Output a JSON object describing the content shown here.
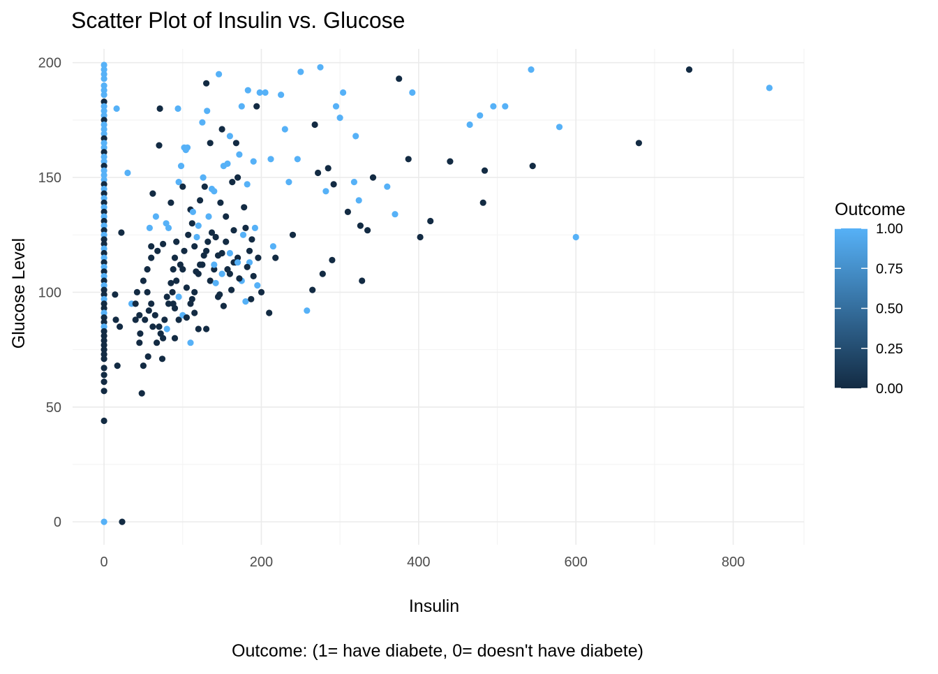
{
  "chart_data": {
    "type": "scatter",
    "title": "Scatter Plot of Insulin  vs. Glucose",
    "xlabel": "Insulin",
    "ylabel": "Glucose Level",
    "caption": "Outcome: (1= have diabete, 0= doesn't have diabete)",
    "xlim": [
      -40,
      890
    ],
    "ylim": [
      -10,
      206
    ],
    "x_ticks": [
      0,
      200,
      400,
      600,
      800
    ],
    "y_ticks": [
      0,
      50,
      100,
      150,
      200
    ],
    "x_tick_labels": [
      "0",
      "200",
      "400",
      "600",
      "800"
    ],
    "y_tick_labels": [
      "0",
      "50",
      "100",
      "150",
      "200"
    ],
    "grid": true,
    "legend": {
      "title": "Outcome",
      "position": "right",
      "type": "colorbar",
      "breaks": [
        0.0,
        0.25,
        0.5,
        0.75,
        1.0
      ],
      "labels": [
        "0.00",
        "0.25",
        "0.50",
        "0.75",
        "1.00"
      ],
      "low_color": "#132B43",
      "high_color": "#56B1F7"
    },
    "points": [
      [
        0,
        199,
        1
      ],
      [
        0,
        197,
        1
      ],
      [
        0,
        195,
        1
      ],
      [
        0,
        193,
        1
      ],
      [
        0,
        190,
        1
      ],
      [
        0,
        188,
        1
      ],
      [
        0,
        186,
        1
      ],
      [
        0,
        183,
        0
      ],
      [
        0,
        181,
        1
      ],
      [
        0,
        179,
        1
      ],
      [
        0,
        177,
        1
      ],
      [
        0,
        175,
        0
      ],
      [
        0,
        173,
        1
      ],
      [
        0,
        171,
        1
      ],
      [
        0,
        169,
        1
      ],
      [
        0,
        167,
        0
      ],
      [
        0,
        165,
        1
      ],
      [
        0,
        163,
        1
      ],
      [
        0,
        161,
        0
      ],
      [
        0,
        159,
        1
      ],
      [
        0,
        157,
        1
      ],
      [
        0,
        155,
        0
      ],
      [
        0,
        153,
        1
      ],
      [
        0,
        151,
        1
      ],
      [
        0,
        149,
        1
      ],
      [
        0,
        147,
        0
      ],
      [
        0,
        145,
        1
      ],
      [
        0,
        143,
        0
      ],
      [
        0,
        141,
        1
      ],
      [
        0,
        139,
        0
      ],
      [
        0,
        137,
        1
      ],
      [
        0,
        135,
        0
      ],
      [
        0,
        133,
        1
      ],
      [
        0,
        131,
        0
      ],
      [
        0,
        129,
        1
      ],
      [
        0,
        127,
        0
      ],
      [
        0,
        125,
        1
      ],
      [
        0,
        123,
        0
      ],
      [
        0,
        121,
        0
      ],
      [
        0,
        119,
        1
      ],
      [
        0,
        117,
        0
      ],
      [
        0,
        115,
        1
      ],
      [
        0,
        113,
        0
      ],
      [
        0,
        111,
        1
      ],
      [
        0,
        109,
        0
      ],
      [
        0,
        107,
        1
      ],
      [
        0,
        105,
        0
      ],
      [
        0,
        103,
        1
      ],
      [
        0,
        101,
        0
      ],
      [
        0,
        99,
        0
      ],
      [
        0,
        97,
        1
      ],
      [
        0,
        95,
        0
      ],
      [
        0,
        93,
        0
      ],
      [
        0,
        91,
        1
      ],
      [
        0,
        89,
        0
      ],
      [
        0,
        87,
        0
      ],
      [
        0,
        85,
        1
      ],
      [
        0,
        83,
        0
      ],
      [
        0,
        81,
        0
      ],
      [
        0,
        79,
        0
      ],
      [
        0,
        77,
        0
      ],
      [
        0,
        75,
        0
      ],
      [
        0,
        73,
        0
      ],
      [
        0,
        71,
        0
      ],
      [
        0,
        67,
        0
      ],
      [
        0,
        64,
        0
      ],
      [
        0,
        61,
        0
      ],
      [
        0,
        57,
        0
      ],
      [
        0,
        44,
        0
      ],
      [
        0,
        0,
        1
      ],
      [
        23,
        0,
        0
      ],
      [
        16,
        180,
        1
      ],
      [
        30,
        152,
        1
      ],
      [
        22,
        126,
        0
      ],
      [
        15,
        88,
        0
      ],
      [
        20,
        85,
        0
      ],
      [
        17,
        68,
        0
      ],
      [
        14,
        99,
        0
      ],
      [
        35,
        95,
        1
      ],
      [
        42,
        100,
        0
      ],
      [
        46,
        82,
        0
      ],
      [
        48,
        56,
        0
      ],
      [
        50,
        68,
        0
      ],
      [
        45,
        78,
        0
      ],
      [
        40,
        88,
        0
      ],
      [
        55,
        110,
        0
      ],
      [
        60,
        120,
        0
      ],
      [
        58,
        128,
        1
      ],
      [
        62,
        143,
        0
      ],
      [
        66,
        133,
        1
      ],
      [
        70,
        164,
        0
      ],
      [
        71,
        180,
        0
      ],
      [
        79,
        130,
        1
      ],
      [
        85,
        139,
        0
      ],
      [
        88,
        110,
        0
      ],
      [
        90,
        115,
        0
      ],
      [
        92,
        122,
        0
      ],
      [
        94,
        180,
        1
      ],
      [
        95,
        148,
        1
      ],
      [
        98,
        155,
        1
      ],
      [
        100,
        146,
        0
      ],
      [
        102,
        163,
        1
      ],
      [
        104,
        162,
        1
      ],
      [
        106,
        163,
        1
      ],
      [
        110,
        136,
        0
      ],
      [
        113,
        135,
        1
      ],
      [
        112,
        97,
        0
      ],
      [
        115,
        120,
        0
      ],
      [
        118,
        124,
        1
      ],
      [
        120,
        129,
        1
      ],
      [
        122,
        140,
        0
      ],
      [
        125,
        174,
        1
      ],
      [
        126,
        150,
        1
      ],
      [
        128,
        146,
        0
      ],
      [
        130,
        191,
        0
      ],
      [
        131,
        179,
        1
      ],
      [
        133,
        133,
        1
      ],
      [
        135,
        165,
        0
      ],
      [
        137,
        145,
        1
      ],
      [
        140,
        144,
        1
      ],
      [
        142,
        124,
        0
      ],
      [
        145,
        116,
        0
      ],
      [
        146,
        195,
        1
      ],
      [
        148,
        139,
        0
      ],
      [
        150,
        171,
        0
      ],
      [
        152,
        155,
        1
      ],
      [
        155,
        133,
        0
      ],
      [
        157,
        156,
        1
      ],
      [
        160,
        168,
        1
      ],
      [
        163,
        148,
        0
      ],
      [
        165,
        113,
        0
      ],
      [
        168,
        165,
        0
      ],
      [
        170,
        150,
        0
      ],
      [
        172,
        160,
        1
      ],
      [
        175,
        181,
        1
      ],
      [
        178,
        137,
        0
      ],
      [
        180,
        128,
        0
      ],
      [
        182,
        147,
        1
      ],
      [
        183,
        188,
        1
      ],
      [
        185,
        113,
        1
      ],
      [
        188,
        123,
        0
      ],
      [
        190,
        157,
        1
      ],
      [
        192,
        128,
        1
      ],
      [
        194,
        181,
        0
      ],
      [
        196,
        115,
        0
      ],
      [
        198,
        187,
        1
      ],
      [
        200,
        100,
        0
      ],
      [
        205,
        187,
        1
      ],
      [
        210,
        91,
        0
      ],
      [
        212,
        158,
        1
      ],
      [
        215,
        120,
        1
      ],
      [
        218,
        115,
        0
      ],
      [
        225,
        186,
        1
      ],
      [
        230,
        171,
        1
      ],
      [
        235,
        148,
        1
      ],
      [
        240,
        125,
        0
      ],
      [
        246,
        158,
        1
      ],
      [
        250,
        196,
        1
      ],
      [
        258,
        92,
        1
      ],
      [
        265,
        101,
        0
      ],
      [
        268,
        173,
        0
      ],
      [
        272,
        152,
        0
      ],
      [
        275,
        198,
        1
      ],
      [
        278,
        108,
        0
      ],
      [
        282,
        144,
        1
      ],
      [
        285,
        154,
        0
      ],
      [
        290,
        114,
        0
      ],
      [
        292,
        147,
        0
      ],
      [
        295,
        181,
        1
      ],
      [
        300,
        176,
        1
      ],
      [
        304,
        187,
        1
      ],
      [
        310,
        135,
        0
      ],
      [
        318,
        148,
        1
      ],
      [
        320,
        168,
        1
      ],
      [
        324,
        140,
        1
      ],
      [
        326,
        129,
        0
      ],
      [
        328,
        105,
        0
      ],
      [
        335,
        127,
        0
      ],
      [
        342,
        150,
        0
      ],
      [
        360,
        146,
        1
      ],
      [
        370,
        134,
        1
      ],
      [
        375,
        193,
        0
      ],
      [
        387,
        158,
        0
      ],
      [
        392,
        187,
        1
      ],
      [
        402,
        124,
        0
      ],
      [
        415,
        131,
        0
      ],
      [
        440,
        157,
        0
      ],
      [
        465,
        173,
        1
      ],
      [
        478,
        177,
        1
      ],
      [
        482,
        139,
        0
      ],
      [
        484,
        153,
        0
      ],
      [
        495,
        181,
        1
      ],
      [
        510,
        181,
        1
      ],
      [
        545,
        155,
        0
      ],
      [
        543,
        197,
        1
      ],
      [
        579,
        172,
        1
      ],
      [
        600,
        124,
        1
      ],
      [
        680,
        165,
        0
      ],
      [
        744,
        197,
        0
      ],
      [
        846,
        189,
        1
      ],
      [
        50,
        105,
        0
      ],
      [
        55,
        100,
        0
      ],
      [
        60,
        95,
        0
      ],
      [
        65,
        90,
        0
      ],
      [
        70,
        85,
        0
      ],
      [
        75,
        80,
        0
      ],
      [
        80,
        98,
        0
      ],
      [
        85,
        104,
        0
      ],
      [
        90,
        93,
        0
      ],
      [
        95,
        88,
        0
      ],
      [
        100,
        110,
        0
      ],
      [
        105,
        102,
        0
      ],
      [
        110,
        95,
        0
      ],
      [
        115,
        100,
        0
      ],
      [
        120,
        108,
        0
      ],
      [
        125,
        112,
        0
      ],
      [
        130,
        118,
        0
      ],
      [
        135,
        105,
        0
      ],
      [
        140,
        110,
        0
      ],
      [
        145,
        98,
        0
      ],
      [
        150,
        117,
        0
      ],
      [
        155,
        122,
        0
      ],
      [
        160,
        108,
        0
      ],
      [
        165,
        127,
        0
      ],
      [
        170,
        115,
        0
      ],
      [
        175,
        105,
        1
      ],
      [
        180,
        96,
        1
      ],
      [
        185,
        118,
        0
      ],
      [
        190,
        107,
        0
      ],
      [
        195,
        103,
        1
      ],
      [
        40,
        95,
        0
      ],
      [
        45,
        90,
        0
      ],
      [
        52,
        88,
        0
      ],
      [
        57,
        92,
        0
      ],
      [
        62,
        85,
        0
      ],
      [
        67,
        78,
        0
      ],
      [
        72,
        82,
        0
      ],
      [
        77,
        88,
        0
      ],
      [
        82,
        95,
        0
      ],
      [
        87,
        100,
        0
      ],
      [
        92,
        105,
        0
      ],
      [
        97,
        112,
        0
      ],
      [
        102,
        118,
        0
      ],
      [
        107,
        125,
        0
      ],
      [
        112,
        130,
        0
      ],
      [
        117,
        109,
        0
      ],
      [
        122,
        112,
        0
      ],
      [
        127,
        116,
        0
      ],
      [
        132,
        122,
        0
      ],
      [
        137,
        126,
        0
      ],
      [
        142,
        104,
        1
      ],
      [
        147,
        99,
        0
      ],
      [
        152,
        94,
        0
      ],
      [
        157,
        110,
        0
      ],
      [
        162,
        101,
        0
      ],
      [
        167,
        113,
        0
      ],
      [
        172,
        106,
        0
      ],
      [
        177,
        125,
        1
      ],
      [
        182,
        111,
        0
      ],
      [
        187,
        97,
        0
      ],
      [
        56,
        72,
        0
      ],
      [
        74,
        71,
        0
      ],
      [
        90,
        80,
        0
      ],
      [
        120,
        84,
        0
      ],
      [
        130,
        84,
        0
      ],
      [
        110,
        78,
        1
      ],
      [
        100,
        90,
        1
      ],
      [
        80,
        84,
        1
      ],
      [
        140,
        112,
        1
      ],
      [
        150,
        108,
        1
      ],
      [
        160,
        117,
        1
      ],
      [
        170,
        113,
        1
      ],
      [
        60,
        115,
        0
      ],
      [
        68,
        118,
        0
      ],
      [
        75,
        121,
        0
      ],
      [
        82,
        128,
        1
      ],
      [
        88,
        95,
        0
      ],
      [
        95,
        98,
        1
      ],
      [
        105,
        89,
        0
      ],
      [
        115,
        91,
        0
      ]
    ]
  }
}
